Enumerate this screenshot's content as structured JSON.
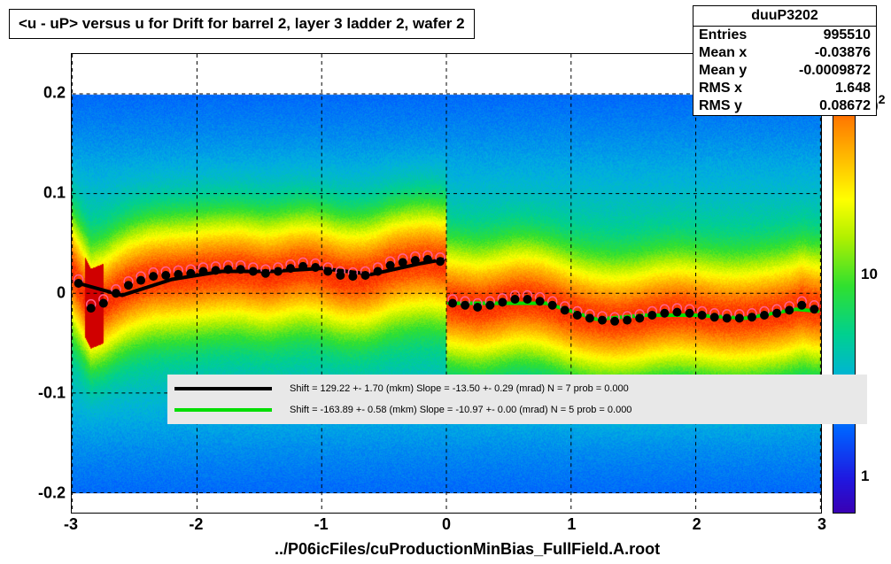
{
  "title": "<u - uP>       versus   u for Drift for barrel 2, layer 3 ladder 2, wafer 2",
  "xlabel": "../P06icFiles/cuProductionMinBias_FullField.A.root",
  "stats": {
    "name": "duuP3202",
    "entries_label": "Entries",
    "entries_value": "995510",
    "meanx_label": "Mean x",
    "meanx_value": "-0.03876",
    "meany_label": "Mean y",
    "meany_value": "-0.0009872",
    "rmsx_label": "RMS x",
    "rmsx_value": "1.648",
    "rmsy_label": "RMS y",
    "rmsy_value": "0.08672"
  },
  "axes": {
    "xlim": [
      -3,
      3
    ],
    "ylim": [
      -0.22,
      0.24
    ],
    "xticks": [
      -3,
      -2,
      -1,
      0,
      1,
      2,
      3
    ],
    "yticks": [
      -0.2,
      -0.1,
      0,
      0.1,
      0.2
    ],
    "grid_color": "#000000",
    "grid_dash": "4,4"
  },
  "colorbar": {
    "scale": "log",
    "ticks": [
      1,
      10,
      100
    ],
    "tick_labels": [
      "1",
      "10",
      ""
    ],
    "top_exp": "2",
    "stops": [
      {
        "p": 0.0,
        "c": "#ffffff"
      },
      {
        "p": 0.05,
        "c": "#3a00b3"
      },
      {
        "p": 0.12,
        "c": "#2018e0"
      },
      {
        "p": 0.22,
        "c": "#0060ff"
      },
      {
        "p": 0.32,
        "c": "#00b0e0"
      },
      {
        "p": 0.42,
        "c": "#00d090"
      },
      {
        "p": 0.52,
        "c": "#30e030"
      },
      {
        "p": 0.62,
        "c": "#b0f000"
      },
      {
        "p": 0.7,
        "c": "#ffff00"
      },
      {
        "p": 0.78,
        "c": "#ffc000"
      },
      {
        "p": 0.86,
        "c": "#ff8000"
      },
      {
        "p": 0.93,
        "c": "#ff3000"
      },
      {
        "p": 1.0,
        "c": "#d00000"
      }
    ]
  },
  "legend": {
    "rows": [
      {
        "color": "#000000",
        "text": "Shift =   129.22 +- 1.70 (mkm) Slope =   -13.50 +- 0.29 (mrad)  N = 7 prob = 0.000"
      },
      {
        "color": "#00dd00",
        "text": "Shift =  -163.89 +- 0.58 (mkm) Slope =   -10.97 +- 0.00 (mrad)  N = 5 prob = 0.000"
      }
    ]
  },
  "heatmap": {
    "band_center": 0.0,
    "band_halfwidth": 0.19,
    "core_halfwidth": 0.055,
    "left_high_x": [
      -2.9,
      -2.75
    ],
    "noise_seed": 7
  },
  "profiles": {
    "left": {
      "color_fit": "#000000",
      "marker_color": "#000000",
      "open_marker_color": "#ff6090",
      "x": [
        -2.95,
        -2.85,
        -2.75,
        -2.65,
        -2.55,
        -2.45,
        -2.35,
        -2.25,
        -2.15,
        -2.05,
        -1.95,
        -1.85,
        -1.75,
        -1.65,
        -1.55,
        -1.45,
        -1.35,
        -1.25,
        -1.15,
        -1.05,
        -0.95,
        -0.85,
        -0.75,
        -0.65,
        -0.55,
        -0.45,
        -0.35,
        -0.25,
        -0.15,
        -0.05
      ],
      "y": [
        0.01,
        -0.015,
        -0.01,
        0.0,
        0.008,
        0.013,
        0.017,
        0.018,
        0.019,
        0.02,
        0.022,
        0.023,
        0.024,
        0.024,
        0.022,
        0.02,
        0.022,
        0.025,
        0.027,
        0.026,
        0.022,
        0.018,
        0.017,
        0.018,
        0.022,
        0.028,
        0.031,
        0.033,
        0.034,
        0.032
      ],
      "fit_x": [
        -2.95,
        -2.6,
        -2.2,
        -1.8,
        -1.4,
        -1.0,
        -0.6,
        -0.2,
        -0.02
      ],
      "fit_y": [
        0.01,
        -0.002,
        0.014,
        0.022,
        0.022,
        0.025,
        0.019,
        0.03,
        0.034
      ]
    },
    "right": {
      "color_fit": "#00dd00",
      "marker_color": "#000000",
      "open_marker_color": "#ff6090",
      "x": [
        0.05,
        0.15,
        0.25,
        0.35,
        0.45,
        0.55,
        0.65,
        0.75,
        0.85,
        0.95,
        1.05,
        1.15,
        1.25,
        1.35,
        1.45,
        1.55,
        1.65,
        1.75,
        1.85,
        1.95,
        2.05,
        2.15,
        2.25,
        2.35,
        2.45,
        2.55,
        2.65,
        2.75,
        2.85,
        2.95
      ],
      "y": [
        -0.01,
        -0.012,
        -0.014,
        -0.012,
        -0.009,
        -0.006,
        -0.006,
        -0.008,
        -0.012,
        -0.017,
        -0.022,
        -0.025,
        -0.027,
        -0.028,
        -0.027,
        -0.025,
        -0.022,
        -0.02,
        -0.019,
        -0.02,
        -0.022,
        -0.024,
        -0.025,
        -0.025,
        -0.024,
        -0.022,
        -0.02,
        -0.017,
        -0.012,
        -0.016
      ],
      "fit_x": [
        0.02,
        0.4,
        0.8,
        1.2,
        1.6,
        2.0,
        2.4,
        2.8,
        2.98
      ],
      "fit_y": [
        -0.01,
        -0.01,
        -0.01,
        -0.026,
        -0.022,
        -0.022,
        -0.025,
        -0.016,
        -0.018
      ]
    }
  },
  "style": {
    "background": "#ffffff",
    "title_fontsize": 17,
    "tick_fontsize": 18,
    "legend_fontsize": 11,
    "marker_size": 5,
    "line_width": 3
  }
}
